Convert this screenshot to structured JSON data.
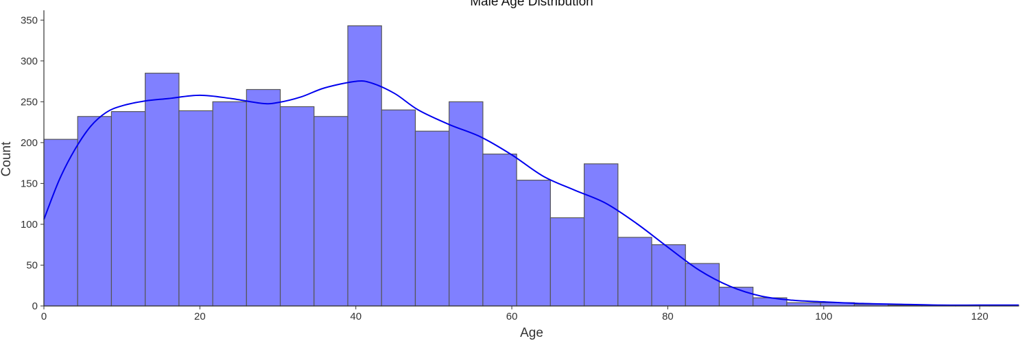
{
  "chart_data": {
    "type": "bar",
    "title": "Male Age Distribution",
    "xlabel": "Age",
    "ylabel": "Count",
    "xlim": [
      0,
      125
    ],
    "ylim": [
      0,
      362
    ],
    "xticks": [
      0,
      20,
      40,
      60,
      80,
      100,
      120
    ],
    "yticks": [
      0,
      50,
      100,
      150,
      200,
      250,
      300,
      350
    ],
    "bin_edges": [
      0,
      4.33,
      8.66,
      12.99,
      17.32,
      21.65,
      25.98,
      30.31,
      34.64,
      38.97,
      43.3,
      47.63,
      51.96,
      56.29,
      60.62,
      64.95,
      69.28,
      73.61,
      77.94,
      82.27,
      86.6,
      90.93,
      95.26,
      99.59,
      103.92,
      108.25,
      112.58,
      116.91,
      121.24,
      125.57
    ],
    "counts": [
      204,
      232,
      238,
      285,
      239,
      250,
      265,
      244,
      232,
      343,
      240,
      214,
      250,
      186,
      154,
      108,
      174,
      84,
      75,
      52,
      23,
      10,
      4,
      4,
      2,
      1,
      1,
      1,
      1
    ],
    "kde": {
      "x": [
        0,
        2,
        4,
        6,
        8,
        10,
        13,
        16,
        20,
        24,
        28,
        30,
        33,
        36,
        40,
        42,
        45,
        48,
        52,
        56,
        60,
        64,
        68,
        72,
        76,
        80,
        84,
        88,
        92,
        96,
        100,
        105,
        110,
        115,
        120,
        125
      ],
      "y": [
        106,
        155,
        192,
        220,
        237,
        245,
        251,
        254,
        258,
        254,
        248,
        249,
        256,
        267,
        275,
        273,
        260,
        240,
        222,
        207,
        185,
        159,
        142,
        126,
        101,
        72,
        44,
        24,
        12,
        7,
        5,
        3,
        2,
        1,
        1,
        1
      ]
    },
    "colors": {
      "bar_fill": "#8080ff",
      "bar_edge": "#555555",
      "kde_line": "#0000ee",
      "axis": "#333333"
    },
    "grid": false,
    "legend": "none"
  }
}
